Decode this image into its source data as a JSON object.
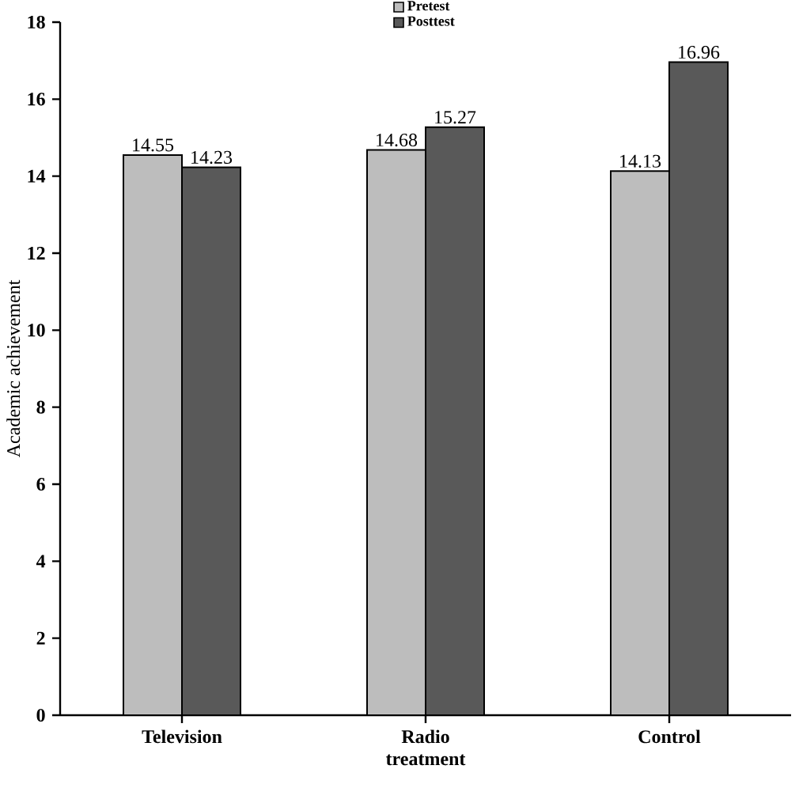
{
  "chart_data": {
    "type": "bar",
    "ylabel": "Academic achievement",
    "categories": [
      "Television",
      "Radio treatment",
      "Control"
    ],
    "series": [
      {
        "name": "Pretest",
        "color": "#bdbdbd",
        "values": [
          14.55,
          14.68,
          14.13
        ]
      },
      {
        "name": "Posttest",
        "color": "#595959",
        "values": [
          14.23,
          15.27,
          16.96
        ]
      }
    ],
    "ylim": [
      0,
      18
    ],
    "yticks": [
      0,
      2,
      4,
      6,
      8,
      10,
      12,
      14,
      16,
      18
    ],
    "data_labels": true,
    "legend": "top",
    "grid": false
  }
}
